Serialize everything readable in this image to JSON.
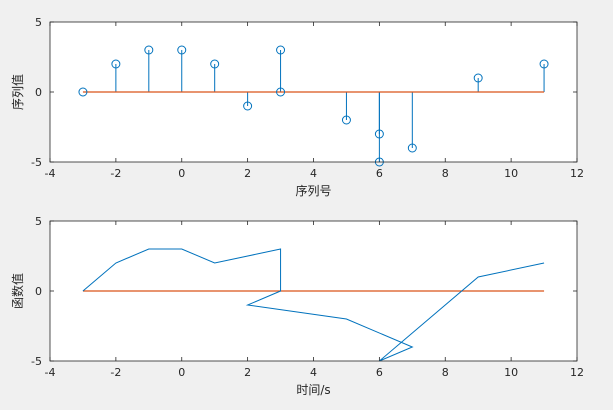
{
  "chart_data": [
    {
      "type": "stem",
      "xlabel": "序列号",
      "ylabel": "序列值",
      "xlim": [
        -4,
        12
      ],
      "ylim": [
        -5,
        5
      ],
      "xticks": [
        -4,
        -2,
        0,
        2,
        4,
        6,
        8,
        10,
        12
      ],
      "yticks": [
        -5,
        0,
        5
      ],
      "x": [
        -3,
        -2,
        -1,
        0,
        1,
        2,
        3,
        3,
        5,
        6,
        6,
        7,
        9,
        11
      ],
      "y": [
        0,
        2,
        3,
        3,
        2,
        -1,
        0,
        3,
        -2,
        -5,
        -3,
        -4,
        1,
        2
      ],
      "baseline": 0,
      "colors": {
        "stem": "#0072BD",
        "baseline": "#D95319"
      }
    },
    {
      "type": "line",
      "xlabel": "时间/s",
      "ylabel": "函数值",
      "xlim": [
        -4,
        12
      ],
      "ylim": [
        -5,
        5
      ],
      "xticks": [
        -4,
        -2,
        0,
        2,
        4,
        6,
        8,
        10,
        12
      ],
      "yticks": [
        -5,
        0,
        5
      ],
      "x": [
        -3,
        -2,
        -1,
        0,
        1,
        3,
        3,
        2,
        5,
        7,
        6,
        9,
        11
      ],
      "y": [
        0,
        2,
        3,
        3,
        2,
        3,
        0,
        -1,
        -2,
        -4,
        -5,
        1,
        2
      ],
      "reference_line": {
        "y": 0,
        "x_from": -3,
        "x_to": 11
      },
      "colors": {
        "line": "#0072BD",
        "reference": "#D95319"
      }
    }
  ]
}
